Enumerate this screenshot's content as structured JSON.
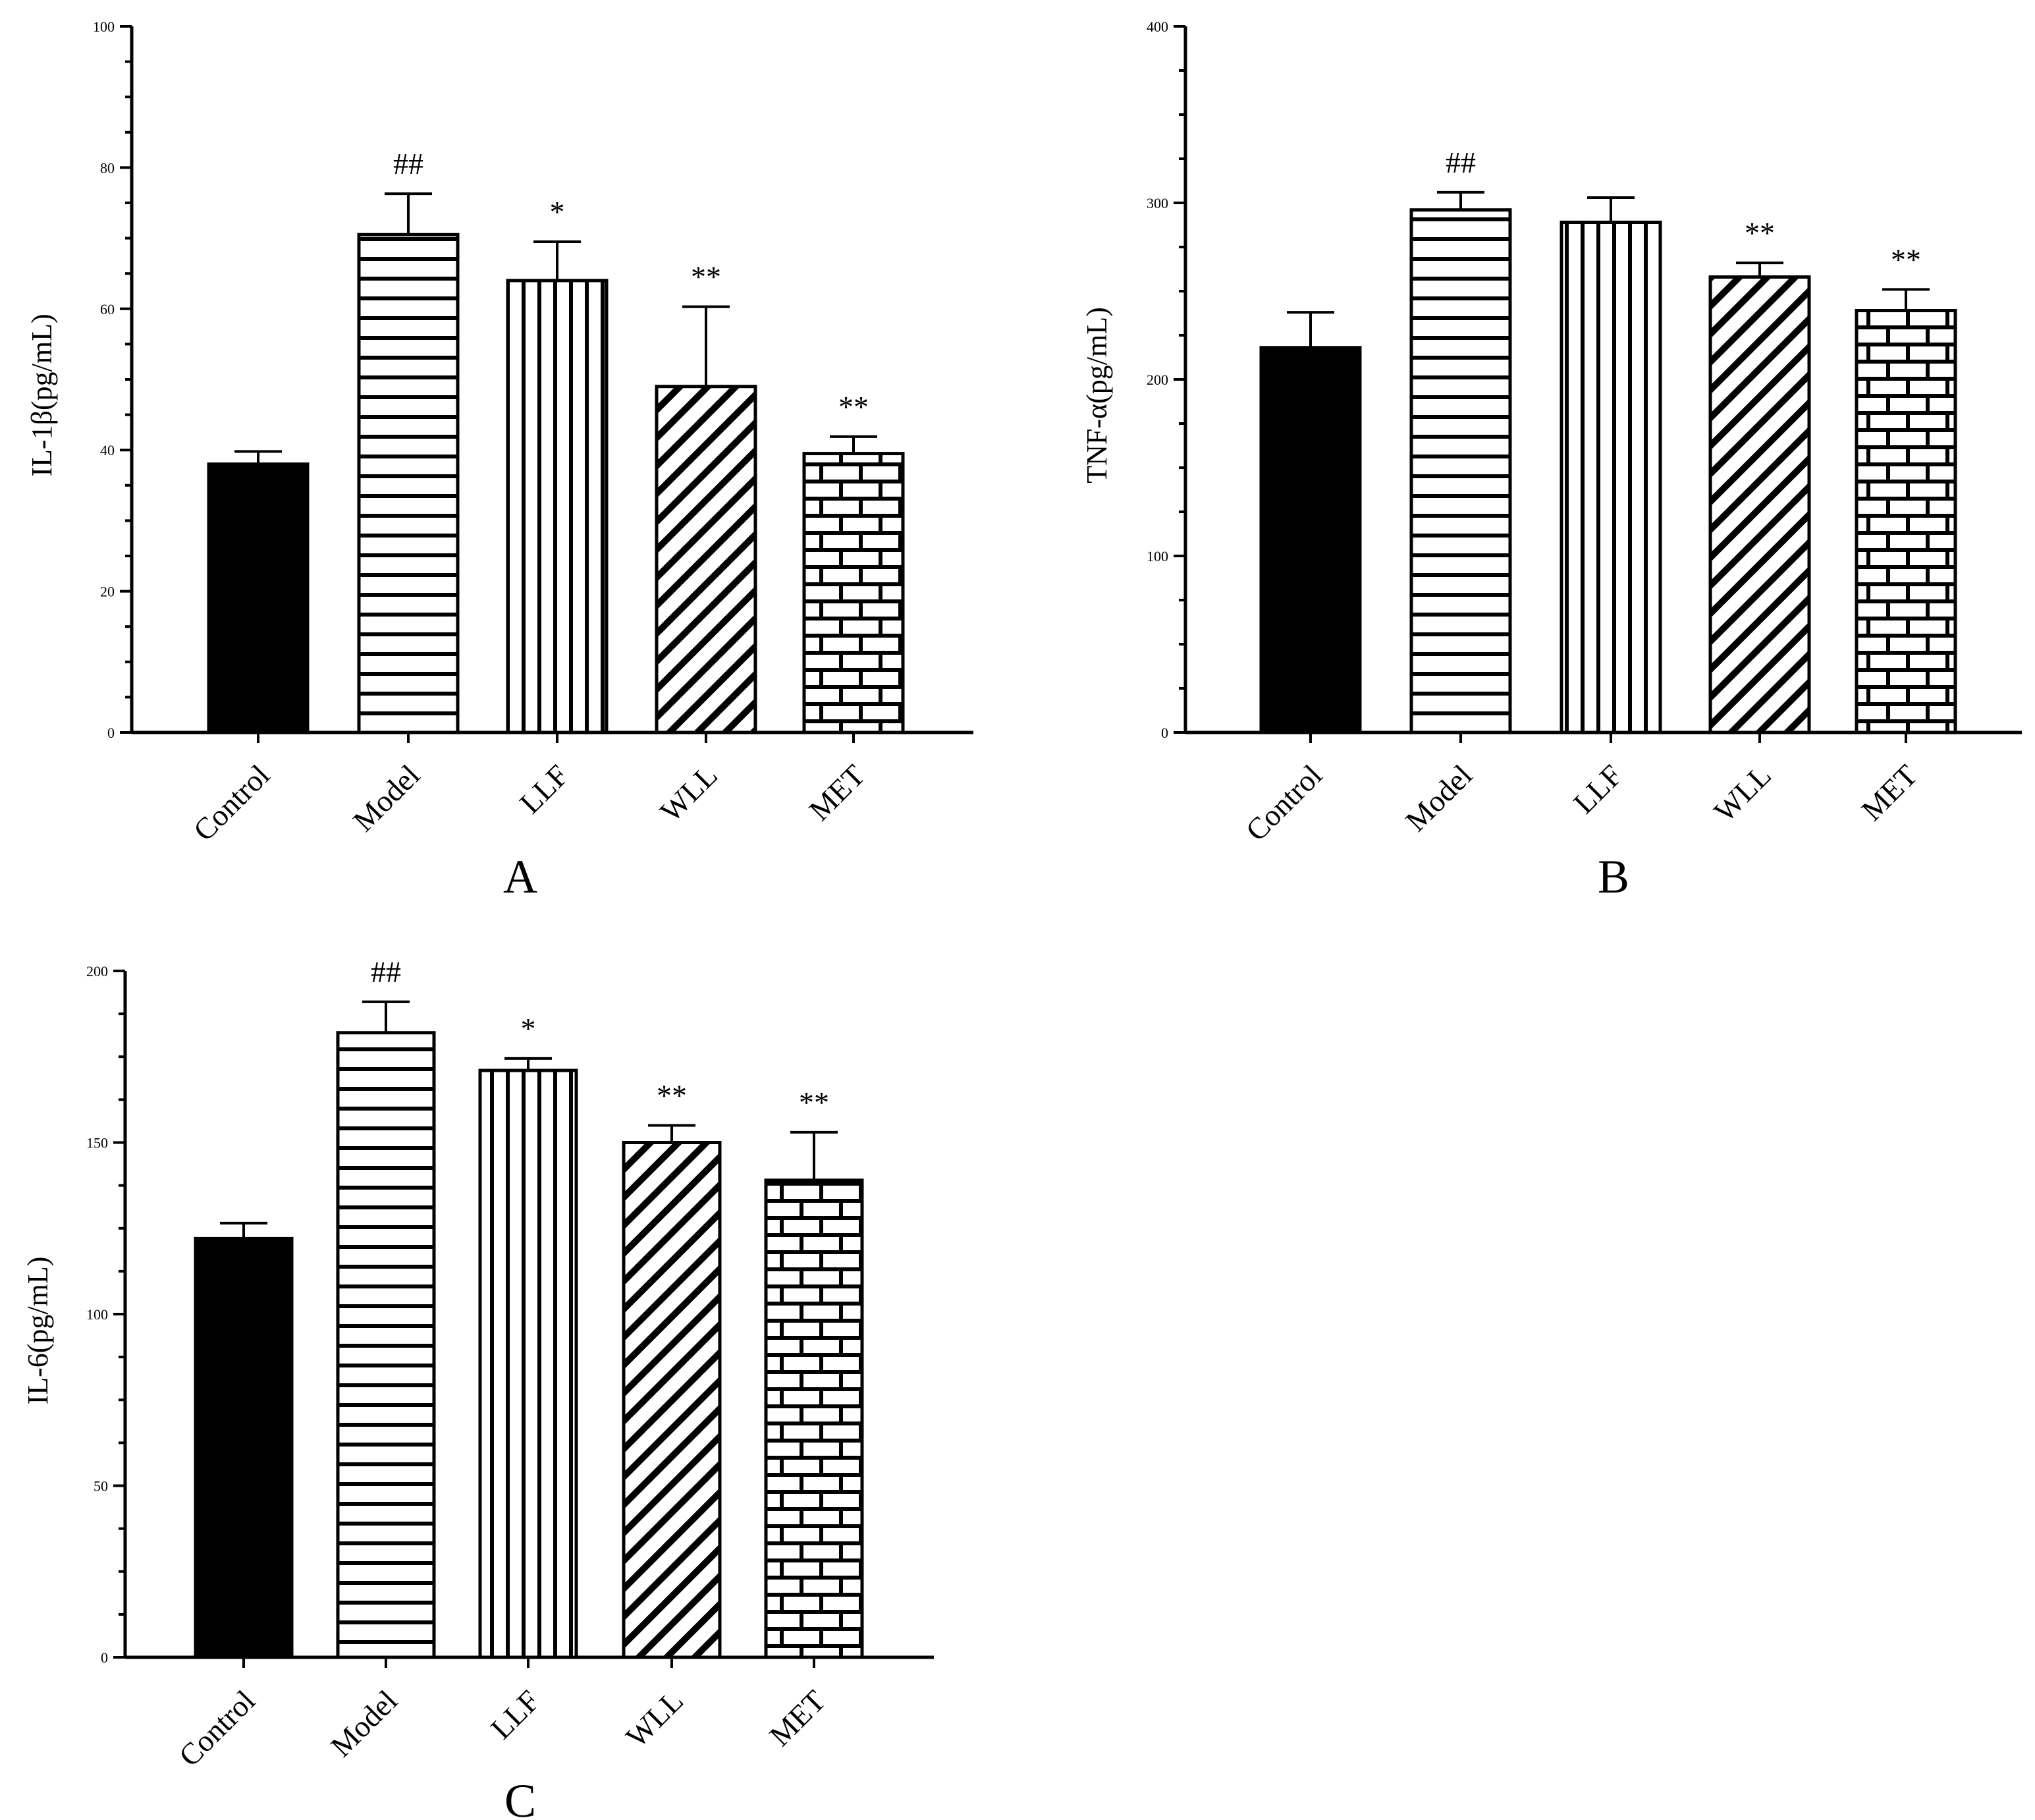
{
  "colors": {
    "ink": "#000000",
    "paper": "#ffffff"
  },
  "chart_data": [
    {
      "type": "bar",
      "panel": "A",
      "ylabel": "IL-1β(pg/mL)",
      "ylim": [
        0,
        100
      ],
      "yticks": [
        0,
        20,
        40,
        60,
        80,
        100
      ],
      "categories": [
        "Control",
        "Model",
        "LLF",
        "WLL",
        "MET"
      ],
      "values": [
        38,
        70.5,
        64,
        49,
        39.5
      ],
      "errors": [
        1.8,
        5.8,
        5.5,
        11.3,
        2.4
      ],
      "patterns": [
        "solid",
        "horizontal",
        "vertical",
        "diagonal",
        "brick"
      ],
      "annotations": [
        "",
        "##",
        "*",
        "**",
        "**"
      ]
    },
    {
      "type": "bar",
      "panel": "B",
      "ylabel": "TNF-α(pg/mL)",
      "ylim": [
        0,
        400
      ],
      "yticks": [
        0,
        100,
        200,
        300,
        400
      ],
      "categories": [
        "Control",
        "Model",
        "LLF",
        "WLL",
        "MET"
      ],
      "values": [
        218,
        296,
        289,
        258,
        239
      ],
      "errors": [
        20,
        10,
        14,
        8,
        12
      ],
      "patterns": [
        "solid",
        "horizontal",
        "vertical",
        "diagonal",
        "brick"
      ],
      "annotations": [
        "",
        "##",
        "",
        "**",
        "**"
      ]
    },
    {
      "type": "bar",
      "panel": "C",
      "ylabel": "IL-6(pg/mL)",
      "ylim": [
        0,
        200
      ],
      "yticks": [
        0,
        50,
        100,
        150,
        200
      ],
      "categories": [
        "Control",
        "Model",
        "LLF",
        "WLL",
        "MET"
      ],
      "values": [
        122,
        182,
        171,
        150,
        139
      ],
      "errors": [
        4.5,
        9,
        3.5,
        5,
        14
      ],
      "patterns": [
        "solid",
        "horizontal",
        "vertical",
        "diagonal",
        "brick"
      ],
      "annotations": [
        "",
        "##",
        "*",
        "**",
        "**"
      ]
    }
  ]
}
